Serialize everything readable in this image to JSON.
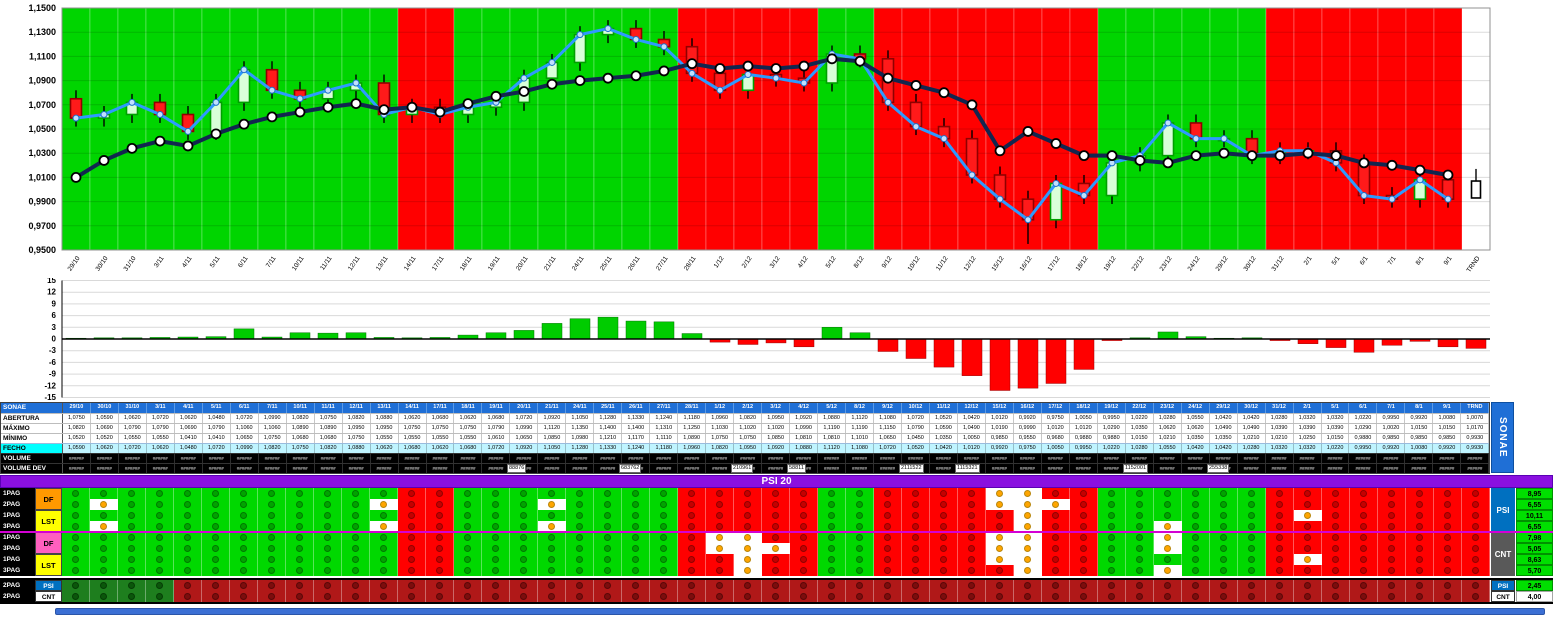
{
  "banner": {
    "title": "PSI 20"
  },
  "chart_data": {
    "type": "candlestick",
    "dates": [
      "29/10",
      "30/10",
      "31/10",
      "3/11",
      "4/11",
      "5/11",
      "6/11",
      "7/11",
      "10/11",
      "11/11",
      "12/11",
      "13/11",
      "14/11",
      "17/11",
      "18/11",
      "19/11",
      "20/11",
      "21/11",
      "24/11",
      "25/11",
      "26/11",
      "27/11",
      "28/11",
      "1/12",
      "2/12",
      "3/12",
      "4/12",
      "5/12",
      "8/12",
      "9/12",
      "10/12",
      "11/12",
      "12/12",
      "15/12",
      "16/12",
      "17/12",
      "18/12",
      "19/12",
      "22/12",
      "23/12",
      "24/12",
      "29/12",
      "30/12",
      "31/12",
      "2/1",
      "5/1",
      "6/1",
      "7/1",
      "8/1",
      "9/1",
      "TRND"
    ],
    "bg_zones": "GGGGGGGGGGGGRRGGGGGGGGRRRRRGGRRRRRRRRGGGGGGRRRRRRRW",
    "ylim": [
      0.95,
      1.15
    ],
    "yticks": [
      {
        "label": "1,1500",
        "v": 1.15
      },
      {
        "label": "1,1300",
        "v": 1.13
      },
      {
        "label": "1,1100",
        "v": 1.11
      },
      {
        "label": "1,0900",
        "v": 1.09
      },
      {
        "label": "1,0700",
        "v": 1.07
      },
      {
        "label": "1,0500",
        "v": 1.05
      },
      {
        "label": "1,0300",
        "v": 1.03
      },
      {
        "label": "1,0100",
        "v": 1.01
      },
      {
        "label": "0,9900",
        "v": 0.99
      },
      {
        "label": "0,9700",
        "v": 0.97
      },
      {
        "label": "0,9500",
        "v": 0.95
      }
    ],
    "series": {
      "open": [
        1.075,
        1.059,
        1.062,
        1.072,
        1.062,
        1.048,
        1.072,
        1.099,
        1.082,
        1.075,
        1.082,
        1.088,
        1.062,
        1.068,
        1.062,
        1.068,
        1.072,
        1.092,
        1.105,
        1.128,
        1.133,
        1.124,
        1.118,
        1.096,
        1.082,
        1.095,
        1.092,
        1.088,
        1.112,
        1.108,
        1.072,
        1.052,
        1.042,
        1.012,
        0.992,
        0.975,
        1.005,
        0.995,
        1.022,
        1.028,
        1.055,
        1.042,
        1.042,
        1.028,
        1.032,
        1.032,
        1.022,
        0.995,
        0.992,
        1.008
      ],
      "high": [
        1.082,
        1.069,
        1.079,
        1.079,
        1.069,
        1.079,
        1.106,
        1.106,
        1.089,
        1.089,
        1.095,
        1.095,
        1.075,
        1.075,
        1.075,
        1.079,
        1.099,
        1.112,
        1.135,
        1.14,
        1.14,
        1.131,
        1.125,
        1.103,
        1.102,
        1.102,
        1.099,
        1.119,
        1.119,
        1.115,
        1.079,
        1.059,
        1.049,
        1.019,
        0.999,
        1.012,
        1.012,
        1.029,
        1.035,
        1.062,
        1.062,
        1.049,
        1.049,
        1.039,
        1.039,
        1.039,
        1.029,
        1.002,
        1.015,
        1.015
      ],
      "low": [
        1.052,
        1.052,
        1.055,
        1.055,
        1.041,
        1.041,
        1.065,
        1.075,
        1.068,
        1.068,
        1.075,
        1.055,
        1.055,
        1.055,
        1.055,
        1.061,
        1.065,
        1.085,
        1.098,
        1.121,
        1.117,
        1.111,
        1.089,
        1.075,
        1.075,
        1.085,
        1.081,
        1.081,
        1.101,
        1.065,
        1.045,
        1.035,
        1.005,
        0.985,
        0.955,
        0.968,
        0.988,
        0.988,
        1.015,
        1.021,
        1.035,
        1.035,
        1.021,
        1.021,
        1.025,
        1.015,
        0.988,
        0.985,
        0.985,
        0.985
      ],
      "close": [
        1.059,
        1.062,
        1.072,
        1.062,
        1.048,
        1.072,
        1.099,
        1.082,
        1.075,
        1.082,
        1.088,
        1.062,
        1.068,
        1.062,
        1.068,
        1.072,
        1.092,
        1.105,
        1.128,
        1.133,
        1.124,
        1.118,
        1.096,
        1.082,
        1.095,
        1.092,
        1.088,
        1.112,
        1.108,
        1.072,
        1.052,
        1.042,
        1.012,
        0.992,
        0.975,
        1.005,
        0.995,
        1.022,
        1.028,
        1.055,
        1.042,
        1.042,
        1.028,
        1.032,
        1.032,
        1.022,
        0.995,
        0.992,
        1.008,
        0.992
      ],
      "trend_line": [
        1.01,
        1.024,
        1.034,
        1.04,
        1.036,
        1.046,
        1.054,
        1.06,
        1.064,
        1.068,
        1.071,
        1.066,
        1.068,
        1.064,
        1.071,
        1.077,
        1.081,
        1.087,
        1.09,
        1.092,
        1.094,
        1.098,
        1.104,
        1.1,
        1.102,
        1.1,
        1.102,
        1.108,
        1.106,
        1.092,
        1.086,
        1.08,
        1.07,
        1.032,
        1.048,
        1.038,
        1.028,
        1.028,
        1.024,
        1.022,
        1.028,
        1.03,
        1.028,
        1.028,
        1.03,
        1.028,
        1.022,
        1.02,
        1.016,
        1.012
      ],
      "trnd_candle": {
        "open": 1.007,
        "high": 1.017,
        "low": 0.993,
        "close": 0.993
      }
    },
    "colors": {
      "bull_fill": "#D9FFD9",
      "bull_stroke": "#00A000",
      "bear_fill": "#FF1A1A",
      "bear_stroke": "#8F0000",
      "bg_green": "#00D500",
      "bg_red": "#FF0000",
      "line_dark": "#12264F",
      "line_light": "#2E9AFE"
    },
    "oscillator": {
      "values": [
        0.2,
        0.3,
        0.3,
        0.4,
        0.5,
        0.6,
        2.6,
        0.5,
        1.6,
        1.5,
        1.6,
        0.4,
        0.3,
        0.4,
        1.0,
        1.6,
        2.2,
        4.0,
        5.2,
        5.6,
        4.6,
        4.4,
        1.4,
        -0.8,
        -1.4,
        -1.0,
        -2.0,
        3.0,
        1.6,
        -3.2,
        -5.0,
        -7.2,
        -9.4,
        -13.2,
        -12.6,
        -11.4,
        -7.8,
        -0.4,
        0.3,
        1.8,
        0.6,
        0.2,
        0.3,
        -0.4,
        -1.2,
        -2.2,
        -3.4,
        -1.6,
        -0.6,
        -2.0,
        -2.4
      ],
      "yticks": [
        15,
        12,
        9,
        6,
        3,
        0,
        -3,
        -6,
        -9,
        -12,
        -15
      ],
      "pos_color": "#00CC00",
      "neg_color": "#FF0000"
    }
  },
  "table": {
    "ticker": "SONAE",
    "trnd_header": "TRND",
    "row_labels": [
      "ABERTURA",
      "MÁXIMO",
      "MÍNIMO",
      "FECHO",
      "VOLUME",
      "VOLUME DEV"
    ],
    "trnd_values": [
      "1,0070",
      "1,0170",
      "0,9930",
      "0,9930",
      "######",
      "######"
    ],
    "volume_fill": "######",
    "volume_labels": [
      {
        "col": 16,
        "text": "88876"
      },
      {
        "col": 20,
        "text": "683762"
      },
      {
        "col": 24,
        "text": "210961"
      },
      {
        "col": 26,
        "text": "58811"
      },
      {
        "col": 30,
        "text": "2111522"
      },
      {
        "col": 32,
        "text": "1115321"
      },
      {
        "col": 38,
        "text": "1152001"
      },
      {
        "col": 41,
        "text": "255338"
      }
    ]
  },
  "signal_grid": {
    "base": "ggggggggggggrrggggggggrrrrrggrrrrrrrrggggggrrrrrrrr",
    "rows": [
      {
        "pag": "1PAG",
        "value": "8,95",
        "orange": [
          33,
          34
        ]
      },
      {
        "pag": "2PAG",
        "value": "6,55",
        "orange": [
          1,
          11,
          17,
          33,
          34,
          35
        ]
      },
      {
        "pag": "1PAG",
        "value": "10,11",
        "orange": [
          34,
          44
        ]
      },
      {
        "pag": "3PAG",
        "value": "6,55",
        "orange": [
          1,
          11,
          17,
          34,
          39
        ]
      },
      {
        "pag": "1PAG",
        "value": "7,98",
        "orange": [
          23,
          24,
          33,
          34,
          39
        ]
      },
      {
        "pag": "3PAG",
        "value": "5,05",
        "orange": [
          23,
          24,
          25,
          33,
          34,
          39
        ]
      },
      {
        "pag": "1PAG",
        "value": "8,63",
        "orange": [
          24,
          33,
          34,
          44
        ]
      },
      {
        "pag": "3PAG",
        "value": "5,70",
        "orange": [
          24,
          34,
          39
        ]
      }
    ],
    "groups": [
      {
        "label": "DF",
        "bg": "#FF9900"
      },
      {
        "label": "LST",
        "bg": "#FFFF00"
      },
      {
        "label": "DF",
        "bg": "#FF5FBF"
      },
      {
        "label": "LST",
        "bg": "#FFFF00"
      }
    ],
    "side": [
      {
        "label": "PSI",
        "bg": "#0070C0"
      },
      {
        "label": "CNT",
        "bg": "#595959"
      }
    ],
    "value_bg": "#00DF00"
  },
  "summary_grid": {
    "rows": [
      {
        "pag": "2PAG",
        "tag": "PSI",
        "tag_bg": "#0070C0",
        "tag_color": "#FFFFFF",
        "value": "2,45",
        "value_bg": "#00DF00",
        "green_cols": 4
      },
      {
        "pag": "2PAG",
        "tag": "CNT",
        "tag_bg": "#FFFFFF",
        "tag_color": "#000000",
        "value": "4,00",
        "value_bg": "#FFFFFF",
        "green_cols": 4
      }
    ]
  }
}
